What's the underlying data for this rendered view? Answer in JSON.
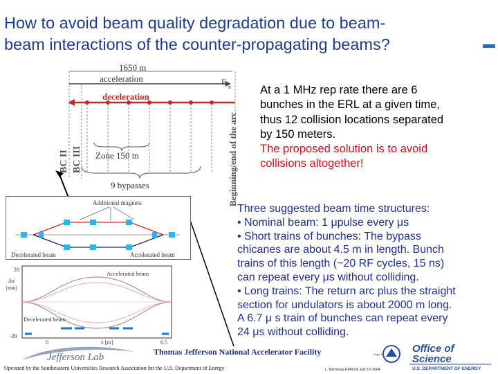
{
  "slide": {
    "title_line1": "How to avoid beam quality degradation due to beam-",
    "title_line2": "beam interactions of the counter-propagating beams?"
  },
  "erl_diagram": {
    "length": "1650 m",
    "acceleration": "acceleration",
    "deceleration": "deceleration",
    "energy_label": "E",
    "energy_sub": "n",
    "bc2": "BC II",
    "bc3": "BC III",
    "zone": "Zone 150 m",
    "bypasses": "9 bypasses",
    "arc_label": "Beginning/end of the arc"
  },
  "chicane_diagram": {
    "magnets": "Additional magnets",
    "decelerated": "Decelerated beam",
    "accelerated": "Accelerated beam"
  },
  "orbit_plot": {
    "accelerated": "Accelerated beam",
    "decelerated": "Decelerated beam",
    "ylabel": "Δx",
    "yunit": "[mm]",
    "xlabel": "z [m]",
    "ytick_top": "20",
    "ytick_bottom": "-20",
    "xtick_left": "0",
    "xtick_right": "6.5"
  },
  "description": {
    "line1": "At a 1 MHz rep rate there are 6",
    "line2": "bunches in the ERL at a given time,",
    "line3": "thus 12 collision locations separated",
    "line4": "by 150 meters.",
    "line5": "The proposed solution is to avoid",
    "line6": "collisions altogether!"
  },
  "structures": {
    "l1": "Three suggested beam time structures:",
    "l2": "• Nominal beam: 1 μpulse every μs",
    "l3": "• Short trains of bunches: The bypass",
    "l4": "chicanes are about 4.5 m in length. Bunch",
    "l5": "trains of this length (~20 RF cycles, 15 ns)",
    "l6": "can repeat every μs without colliding.",
    "l7": "• Long trains: The return arc plus the straight",
    "l8": "section for undulators is about 2000 m long.",
    "l9": "A 6.7 μ s train of bunches can repeat every",
    "l10": "24 μs without colliding."
  },
  "footer": {
    "lab": "Thomas Jefferson National Accelerator Facility",
    "operated": "Operated by the Southeastern Universities Research Association for the U.S. Department of Energy",
    "author": "L. Merminga EPAC04 July 5-9 2004",
    "page": "Page 14",
    "office": "Office of",
    "science": "Science",
    "doe": "U.S. DEPARTMENT OF ENERGY",
    "jlab": "Jefferson Lab"
  },
  "colors": {
    "title": "#1f3d8a",
    "accent_red": "#d0101a",
    "beam_blue": "#1a237e",
    "beam_red": "#c62828",
    "doe_blue": "#2b4fa0"
  }
}
